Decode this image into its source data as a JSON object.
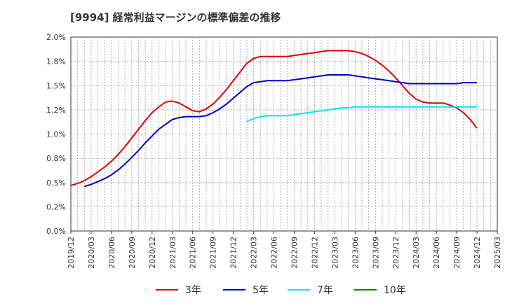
{
  "chart_data": {
    "type": "line",
    "title": "[9994]  経常利益マージンの標準偏差の推移",
    "xlabel": "",
    "ylabel": "",
    "ylim": [
      0,
      0.02
    ],
    "y_ticks": [
      "0.0%",
      "0.2%",
      "0.5%",
      "0.8%",
      "1.0%",
      "1.2%",
      "1.5%",
      "1.8%",
      "2.0%"
    ],
    "x_ticks": [
      "2019/12",
      "2020/03",
      "2020/06",
      "2020/09",
      "2020/12",
      "2021/03",
      "2021/06",
      "2021/09",
      "2021/12",
      "2022/03",
      "2022/06",
      "2022/09",
      "2022/12",
      "2023/03",
      "2023/06",
      "2023/09",
      "2023/12",
      "2024/03",
      "2024/06",
      "2024/09",
      "2024/12",
      "2025/03"
    ],
    "grid": true,
    "legend_position": "bottom",
    "series": [
      {
        "name": "3年",
        "color": "#dd0000",
        "points": [
          [
            "2019/12",
            0.0047
          ],
          [
            "2020/01",
            0.0049
          ],
          [
            "2020/02",
            0.0052
          ],
          [
            "2020/03",
            0.0056
          ],
          [
            "2020/04",
            0.0061
          ],
          [
            "2020/05",
            0.0066
          ],
          [
            "2020/06",
            0.0072
          ],
          [
            "2020/07",
            0.0079
          ],
          [
            "2020/08",
            0.0087
          ],
          [
            "2020/09",
            0.0096
          ],
          [
            "2020/10",
            0.0105
          ],
          [
            "2020/11",
            0.0114
          ],
          [
            "2020/12",
            0.0122
          ],
          [
            "2021/01",
            0.0128
          ],
          [
            "2021/02",
            0.0133
          ],
          [
            "2021/03",
            0.0134
          ],
          [
            "2021/04",
            0.0132
          ],
          [
            "2021/05",
            0.0128
          ],
          [
            "2021/06",
            0.0124
          ],
          [
            "2021/07",
            0.0123
          ],
          [
            "2021/08",
            0.0126
          ],
          [
            "2021/09",
            0.0131
          ],
          [
            "2021/10",
            0.0138
          ],
          [
            "2021/11",
            0.0146
          ],
          [
            "2021/12",
            0.0155
          ],
          [
            "2022/01",
            0.0164
          ],
          [
            "2022/02",
            0.0173
          ],
          [
            "2022/03",
            0.0178
          ],
          [
            "2022/04",
            0.018
          ],
          [
            "2022/05",
            0.018
          ],
          [
            "2022/06",
            0.018
          ],
          [
            "2022/07",
            0.018
          ],
          [
            "2022/08",
            0.018
          ],
          [
            "2022/09",
            0.0181
          ],
          [
            "2022/10",
            0.0182
          ],
          [
            "2022/11",
            0.0183
          ],
          [
            "2022/12",
            0.0184
          ],
          [
            "2023/01",
            0.0185
          ],
          [
            "2023/02",
            0.0186
          ],
          [
            "2023/03",
            0.0186
          ],
          [
            "2023/04",
            0.0186
          ],
          [
            "2023/05",
            0.0186
          ],
          [
            "2023/06",
            0.0185
          ],
          [
            "2023/07",
            0.0183
          ],
          [
            "2023/08",
            0.018
          ],
          [
            "2023/09",
            0.0176
          ],
          [
            "2023/10",
            0.0171
          ],
          [
            "2023/11",
            0.0165
          ],
          [
            "2023/12",
            0.0158
          ],
          [
            "2024/01",
            0.015
          ],
          [
            "2024/02",
            0.0142
          ],
          [
            "2024/03",
            0.0136
          ],
          [
            "2024/04",
            0.0133
          ],
          [
            "2024/05",
            0.0132
          ],
          [
            "2024/06",
            0.0132
          ],
          [
            "2024/07",
            0.0132
          ],
          [
            "2024/08",
            0.013
          ],
          [
            "2024/09",
            0.0127
          ],
          [
            "2024/10",
            0.0122
          ],
          [
            "2024/11",
            0.0115
          ],
          [
            "2024/12",
            0.0106
          ]
        ]
      },
      {
        "name": "5年",
        "color": "#0000cc",
        "points": [
          [
            "2020/02",
            0.0046
          ],
          [
            "2020/03",
            0.0048
          ],
          [
            "2020/04",
            0.0051
          ],
          [
            "2020/05",
            0.0054
          ],
          [
            "2020/06",
            0.0058
          ],
          [
            "2020/07",
            0.0063
          ],
          [
            "2020/08",
            0.0069
          ],
          [
            "2020/09",
            0.0076
          ],
          [
            "2020/10",
            0.0083
          ],
          [
            "2020/11",
            0.0091
          ],
          [
            "2020/12",
            0.0098
          ],
          [
            "2021/01",
            0.0105
          ],
          [
            "2021/02",
            0.011
          ],
          [
            "2021/03",
            0.0115
          ],
          [
            "2021/04",
            0.0117
          ],
          [
            "2021/05",
            0.0118
          ],
          [
            "2021/06",
            0.0118
          ],
          [
            "2021/07",
            0.0118
          ],
          [
            "2021/08",
            0.0119
          ],
          [
            "2021/09",
            0.0122
          ],
          [
            "2021/10",
            0.0126
          ],
          [
            "2021/11",
            0.0131
          ],
          [
            "2021/12",
            0.0137
          ],
          [
            "2022/01",
            0.0143
          ],
          [
            "2022/02",
            0.0149
          ],
          [
            "2022/03",
            0.0153
          ],
          [
            "2022/04",
            0.0154
          ],
          [
            "2022/05",
            0.0155
          ],
          [
            "2022/06",
            0.0155
          ],
          [
            "2022/07",
            0.0155
          ],
          [
            "2022/08",
            0.0155
          ],
          [
            "2022/09",
            0.0156
          ],
          [
            "2022/10",
            0.0157
          ],
          [
            "2022/11",
            0.0158
          ],
          [
            "2022/12",
            0.0159
          ],
          [
            "2023/01",
            0.016
          ],
          [
            "2023/02",
            0.0161
          ],
          [
            "2023/03",
            0.0161
          ],
          [
            "2023/04",
            0.0161
          ],
          [
            "2023/05",
            0.0161
          ],
          [
            "2023/06",
            0.016
          ],
          [
            "2023/07",
            0.0159
          ],
          [
            "2023/08",
            0.0158
          ],
          [
            "2023/09",
            0.0157
          ],
          [
            "2023/10",
            0.0156
          ],
          [
            "2023/11",
            0.0155
          ],
          [
            "2023/12",
            0.0154
          ],
          [
            "2024/01",
            0.0153
          ],
          [
            "2024/02",
            0.0152
          ],
          [
            "2024/03",
            0.0152
          ],
          [
            "2024/04",
            0.0152
          ],
          [
            "2024/05",
            0.0152
          ],
          [
            "2024/06",
            0.0152
          ],
          [
            "2024/07",
            0.0152
          ],
          [
            "2024/08",
            0.0152
          ],
          [
            "2024/09",
            0.0152
          ],
          [
            "2024/10",
            0.0153
          ],
          [
            "2024/11",
            0.0153
          ],
          [
            "2024/12",
            0.0153
          ]
        ]
      },
      {
        "name": "7年",
        "color": "#00e5ee",
        "points": [
          [
            "2022/02",
            0.0113
          ],
          [
            "2022/03",
            0.0116
          ],
          [
            "2022/04",
            0.0118
          ],
          [
            "2022/05",
            0.0119
          ],
          [
            "2022/06",
            0.0119
          ],
          [
            "2022/07",
            0.0119
          ],
          [
            "2022/08",
            0.0119
          ],
          [
            "2022/09",
            0.012
          ],
          [
            "2022/10",
            0.0121
          ],
          [
            "2022/11",
            0.0122
          ],
          [
            "2022/12",
            0.0123
          ],
          [
            "2023/01",
            0.0124
          ],
          [
            "2023/02",
            0.0125
          ],
          [
            "2023/03",
            0.0126
          ],
          [
            "2023/04",
            0.0127
          ],
          [
            "2023/05",
            0.0127
          ],
          [
            "2023/06",
            0.0128
          ],
          [
            "2023/07",
            0.0128
          ],
          [
            "2023/08",
            0.0128
          ],
          [
            "2023/09",
            0.0128
          ],
          [
            "2023/10",
            0.0128
          ],
          [
            "2023/11",
            0.0128
          ],
          [
            "2023/12",
            0.0128
          ],
          [
            "2024/01",
            0.0128
          ],
          [
            "2024/02",
            0.0128
          ],
          [
            "2024/03",
            0.0128
          ],
          [
            "2024/04",
            0.0128
          ],
          [
            "2024/05",
            0.0128
          ],
          [
            "2024/06",
            0.0128
          ],
          [
            "2024/07",
            0.0128
          ],
          [
            "2024/08",
            0.0128
          ],
          [
            "2024/09",
            0.0128
          ],
          [
            "2024/10",
            0.0128
          ],
          [
            "2024/11",
            0.0128
          ],
          [
            "2024/12",
            0.0128
          ]
        ]
      },
      {
        "name": "10年",
        "color": "#008000",
        "points": []
      }
    ]
  }
}
